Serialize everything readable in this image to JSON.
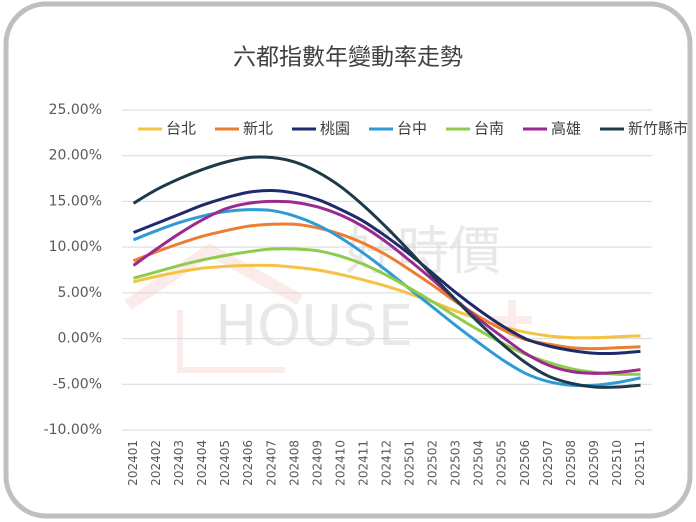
{
  "chart_data": {
    "type": "line",
    "title": "六都指數年變動率走勢",
    "watermark": [
      "好時價",
      "HOUSE"
    ],
    "categories": [
      "202401",
      "202402",
      "202403",
      "202404",
      "202405",
      "202406",
      "202407",
      "202408",
      "202409",
      "202410",
      "202411",
      "202412",
      "202501",
      "202502",
      "202503",
      "202504",
      "202505",
      "202506",
      "202507",
      "202508",
      "202509",
      "202510",
      "202511"
    ],
    "ylim": [
      -10,
      25
    ],
    "yticks": [
      {
        "value": -10,
        "label": "-10.00%"
      },
      {
        "value": -5,
        "label": "-5.00%"
      },
      {
        "value": 0,
        "label": "0.00%"
      },
      {
        "value": 5,
        "label": "5.00%"
      },
      {
        "value": 10,
        "label": "10.00%"
      },
      {
        "value": 15,
        "label": "15.00%"
      },
      {
        "value": 20,
        "label": "20.00%"
      },
      {
        "value": 25,
        "label": "25.00%"
      }
    ],
    "grid": true,
    "legend": "top",
    "series": [
      {
        "name": "台北",
        "color": "#f5c242",
        "values": [
          6.2,
          6.8,
          7.3,
          7.7,
          7.9,
          8.0,
          8.0,
          7.8,
          7.5,
          7.0,
          6.4,
          5.7,
          4.9,
          4.0,
          3.0,
          2.1,
          1.3,
          0.7,
          0.3,
          0.1,
          0.1,
          0.2,
          0.3
        ]
      },
      {
        "name": "新北",
        "color": "#ed7d31",
        "values": [
          8.5,
          9.5,
          10.4,
          11.2,
          11.8,
          12.3,
          12.5,
          12.5,
          12.1,
          11.4,
          10.4,
          9.1,
          7.5,
          5.8,
          4.0,
          2.4,
          1.0,
          -0.1,
          -0.6,
          -1.0,
          -1.1,
          -1.0,
          -0.9
        ]
      },
      {
        "name": "桃園",
        "color": "#1f2a6b",
        "values": [
          11.6,
          12.6,
          13.6,
          14.6,
          15.4,
          16.0,
          16.2,
          15.9,
          15.2,
          14.1,
          12.8,
          11.1,
          9.2,
          7.1,
          5.0,
          3.1,
          1.4,
          0.0,
          -0.8,
          -1.3,
          -1.6,
          -1.6,
          -1.4
        ]
      },
      {
        "name": "台中",
        "color": "#2e9bd6",
        "values": [
          10.8,
          11.8,
          12.7,
          13.4,
          13.9,
          14.1,
          14.0,
          13.4,
          12.4,
          11.0,
          9.3,
          7.4,
          5.4,
          3.4,
          1.4,
          -0.5,
          -2.3,
          -3.8,
          -4.7,
          -5.1,
          -5.1,
          -4.8,
          -4.3
        ]
      },
      {
        "name": "台南",
        "color": "#8fcb4c",
        "values": [
          6.6,
          7.3,
          8.0,
          8.6,
          9.1,
          9.5,
          9.8,
          9.8,
          9.6,
          9.0,
          8.1,
          6.9,
          5.5,
          4.0,
          2.4,
          0.9,
          -0.5,
          -1.7,
          -2.6,
          -3.3,
          -3.7,
          -3.9,
          -3.9
        ]
      },
      {
        "name": "高雄",
        "color": "#9b2a8f",
        "values": [
          8.0,
          9.8,
          11.5,
          13.0,
          14.2,
          14.8,
          15.0,
          14.9,
          14.4,
          13.5,
          12.2,
          10.5,
          8.5,
          6.4,
          4.2,
          2.1,
          0.2,
          -1.6,
          -2.9,
          -3.6,
          -3.8,
          -3.7,
          -3.4
        ]
      },
      {
        "name": "新竹縣市",
        "color": "#1e3a4a",
        "values": [
          14.8,
          16.3,
          17.5,
          18.5,
          19.3,
          19.8,
          19.8,
          19.3,
          18.2,
          16.6,
          14.5,
          12.1,
          9.5,
          6.8,
          4.2,
          1.7,
          -0.6,
          -2.6,
          -4.1,
          -4.9,
          -5.3,
          -5.3,
          -5.1
        ]
      }
    ]
  }
}
